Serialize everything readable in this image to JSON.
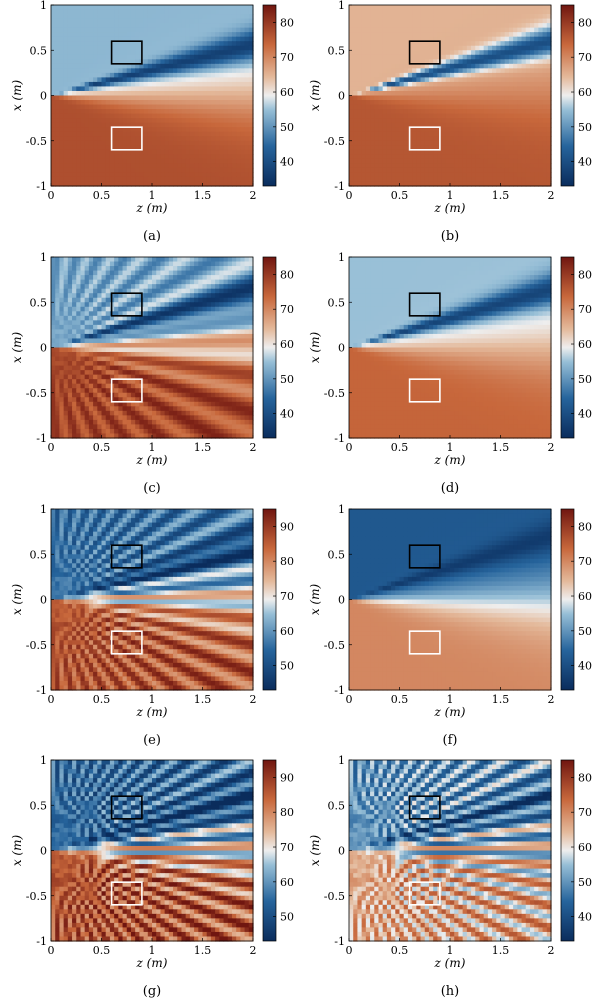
{
  "figure": {
    "x_axis_label": "z (m)",
    "y_axis_label": "x (m)"
  },
  "chart_data": [
    {
      "type": "heatmap",
      "panel_label": "(a)",
      "xlabel": "z (m)",
      "ylabel": "x (m)",
      "xlim": [
        0,
        2
      ],
      "ylim": [
        -1,
        1
      ],
      "x_ticks": [
        "0",
        "0.5",
        "1",
        "1.5",
        "2"
      ],
      "y_ticks": [
        "1",
        "0.5",
        "0",
        "-0.5",
        "-1"
      ],
      "colorbar": {
        "range": [
          33,
          85
        ],
        "ticks": [
          "80",
          "70",
          "60",
          "50",
          "40"
        ]
      },
      "field": {
        "top_level": 54,
        "bottom_level": 77,
        "beam_center": 0.28,
        "beam_level": 37,
        "fringes": 0
      },
      "boxes": [
        {
          "color": "black",
          "z": [
            0.6,
            0.9
          ],
          "x": [
            0.35,
            0.6
          ]
        },
        {
          "color": "white",
          "z": [
            0.6,
            0.9
          ],
          "x": [
            -0.6,
            -0.35
          ]
        }
      ]
    },
    {
      "type": "heatmap",
      "panel_label": "(b)",
      "xlabel": "z (m)",
      "ylabel": "x (m)",
      "xlim": [
        0,
        2
      ],
      "ylim": [
        -1,
        1
      ],
      "x_ticks": [
        "0",
        "0.5",
        "1",
        "1.5",
        "2"
      ],
      "y_ticks": [
        "1",
        "0.5",
        "0",
        "-0.5",
        "-1"
      ],
      "colorbar": {
        "range": [
          33,
          85
        ],
        "ticks": [
          "80",
          "70",
          "60",
          "50",
          "40"
        ]
      },
      "field": {
        "top_level": 65,
        "bottom_level": 76,
        "beam_center": 0.3,
        "beam_level": 40,
        "fringes": 0
      },
      "boxes": [
        {
          "color": "black",
          "z": [
            0.6,
            0.9
          ],
          "x": [
            0.35,
            0.6
          ]
        },
        {
          "color": "white",
          "z": [
            0.6,
            0.9
          ],
          "x": [
            -0.6,
            -0.35
          ]
        }
      ]
    },
    {
      "type": "heatmap",
      "panel_label": "(c)",
      "xlabel": "z (m)",
      "ylabel": "x (m)",
      "xlim": [
        0,
        2
      ],
      "ylim": [
        -1,
        1
      ],
      "x_ticks": [
        "0",
        "0.5",
        "1",
        "1.5",
        "2"
      ],
      "y_ticks": [
        "1",
        "0.5",
        "0",
        "-0.5",
        "-1"
      ],
      "colorbar": {
        "range": [
          33,
          85
        ],
        "ticks": [
          "80",
          "70",
          "60",
          "50",
          "40"
        ]
      },
      "field": {
        "top_level": 52,
        "bottom_level": 78,
        "beam_center": 0.3,
        "beam_level": 37,
        "fringes": 1
      },
      "boxes": [
        {
          "color": "black",
          "z": [
            0.6,
            0.9
          ],
          "x": [
            0.35,
            0.6
          ]
        },
        {
          "color": "white",
          "z": [
            0.6,
            0.9
          ],
          "x": [
            -0.6,
            -0.35
          ]
        }
      ]
    },
    {
      "type": "heatmap",
      "panel_label": "(d)",
      "xlabel": "z (m)",
      "ylabel": "x (m)",
      "xlim": [
        0,
        2
      ],
      "ylim": [
        -1,
        1
      ],
      "x_ticks": [
        "0",
        "0.5",
        "1",
        "1.5",
        "2"
      ],
      "y_ticks": [
        "1",
        "0.5",
        "0",
        "-0.5",
        "-1"
      ],
      "colorbar": {
        "range": [
          33,
          85
        ],
        "ticks": [
          "80",
          "70",
          "60",
          "50",
          "40"
        ]
      },
      "field": {
        "top_level": 55,
        "bottom_level": 74,
        "beam_center": 0.32,
        "beam_level": 38,
        "fringes": 0
      },
      "boxes": [
        {
          "color": "black",
          "z": [
            0.6,
            0.9
          ],
          "x": [
            0.35,
            0.6
          ]
        },
        {
          "color": "white",
          "z": [
            0.6,
            0.9
          ],
          "x": [
            -0.6,
            -0.35
          ]
        }
      ]
    },
    {
      "type": "heatmap",
      "panel_label": "(e)",
      "xlabel": "z (m)",
      "ylabel": "x (m)",
      "xlim": [
        0,
        2
      ],
      "ylim": [
        -1,
        1
      ],
      "x_ticks": [
        "0",
        "0.5",
        "1",
        "1.5",
        "2"
      ],
      "y_ticks": [
        "1",
        "0.5",
        "0",
        "-0.5",
        "-1"
      ],
      "colorbar": {
        "range": [
          43,
          95
        ],
        "ticks": [
          "90",
          "80",
          "70",
          "60",
          "50"
        ]
      },
      "field": {
        "top_level": 56,
        "bottom_level": 86,
        "beam_center": 0.3,
        "beam_level": 47,
        "fringes": 2
      },
      "boxes": [
        {
          "color": "black",
          "z": [
            0.6,
            0.9
          ],
          "x": [
            0.35,
            0.6
          ]
        },
        {
          "color": "white",
          "z": [
            0.6,
            0.9
          ],
          "x": [
            -0.6,
            -0.35
          ]
        }
      ]
    },
    {
      "type": "heatmap",
      "panel_label": "(f)",
      "xlabel": "z (m)",
      "ylabel": "x (m)",
      "xlim": [
        0,
        2
      ],
      "ylim": [
        -1,
        1
      ],
      "x_ticks": [
        "0",
        "0.5",
        "1",
        "1.5",
        "2"
      ],
      "y_ticks": [
        "1",
        "0.5",
        "0",
        "-0.5",
        "-1"
      ],
      "colorbar": {
        "range": [
          33,
          85
        ],
        "ticks": [
          "80",
          "70",
          "60",
          "50",
          "40"
        ]
      },
      "field": {
        "top_level": 42,
        "bottom_level": 70,
        "beam_center": 0.35,
        "beam_level": 36,
        "fringes": 0
      },
      "boxes": [
        {
          "color": "black",
          "z": [
            0.6,
            0.9
          ],
          "x": [
            0.35,
            0.6
          ]
        },
        {
          "color": "white",
          "z": [
            0.6,
            0.9
          ],
          "x": [
            -0.6,
            -0.35
          ]
        }
      ]
    },
    {
      "type": "heatmap",
      "panel_label": "(g)",
      "xlabel": "z (m)",
      "ylabel": "x (m)",
      "xlim": [
        0,
        2
      ],
      "ylim": [
        -1,
        1
      ],
      "x_ticks": [
        "0",
        "0.5",
        "1",
        "1.5",
        "2"
      ],
      "y_ticks": [
        "1",
        "0.5",
        "0",
        "-0.5",
        "-1"
      ],
      "colorbar": {
        "range": [
          43,
          95
        ],
        "ticks": [
          "90",
          "80",
          "70",
          "60",
          "50"
        ]
      },
      "field": {
        "top_level": 55,
        "bottom_level": 86,
        "beam_center": 0.3,
        "beam_level": 46,
        "fringes": 3
      },
      "boxes": [
        {
          "color": "black",
          "z": [
            0.6,
            0.9
          ],
          "x": [
            0.35,
            0.6
          ]
        },
        {
          "color": "white",
          "z": [
            0.6,
            0.9
          ],
          "x": [
            -0.6,
            -0.35
          ]
        }
      ]
    },
    {
      "type": "heatmap",
      "panel_label": "(h)",
      "xlabel": "z (m)",
      "ylabel": "x (m)",
      "xlim": [
        0,
        2
      ],
      "ylim": [
        -1,
        1
      ],
      "x_ticks": [
        "0",
        "0.5",
        "1",
        "1.5",
        "2"
      ],
      "y_ticks": [
        "1",
        "0.5",
        "0",
        "-0.5",
        "-1"
      ],
      "colorbar": {
        "range": [
          33,
          85
        ],
        "ticks": [
          "80",
          "70",
          "60",
          "50",
          "40"
        ]
      },
      "field": {
        "top_level": 50,
        "bottom_level": 66,
        "beam_center": 0.3,
        "beam_level": 40,
        "fringes": 3
      },
      "boxes": [
        {
          "color": "black",
          "z": [
            0.6,
            0.9
          ],
          "x": [
            0.35,
            0.6
          ]
        },
        {
          "color": "white",
          "z": [
            0.6,
            0.9
          ],
          "x": [
            -0.6,
            -0.35
          ]
        }
      ]
    }
  ]
}
